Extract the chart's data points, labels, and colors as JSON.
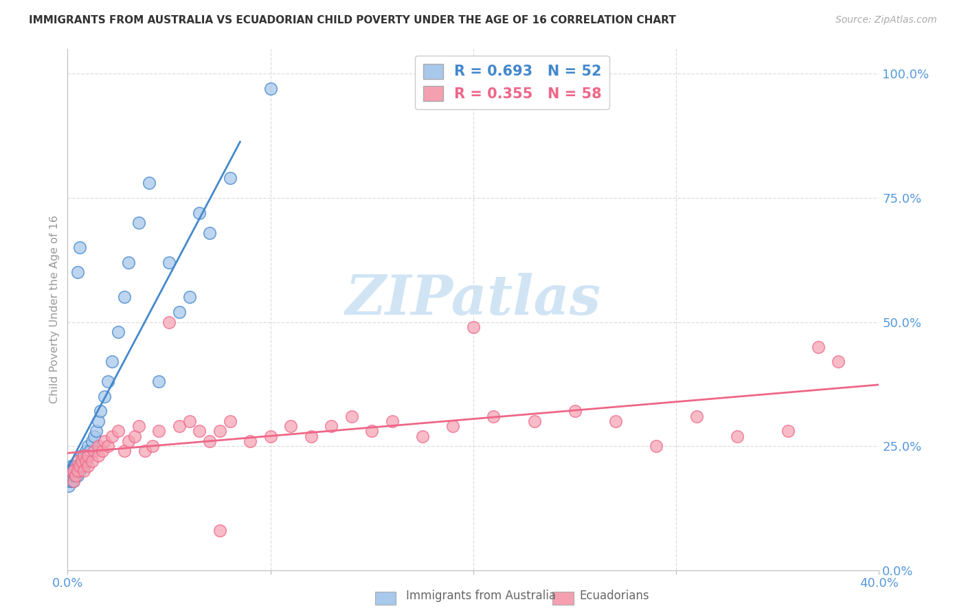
{
  "title": "IMMIGRANTS FROM AUSTRALIA VS ECUADORIAN CHILD POVERTY UNDER THE AGE OF 16 CORRELATION CHART",
  "source": "Source: ZipAtlas.com",
  "ylabel": "Child Poverty Under the Age of 16",
  "legend_label_blue": "Immigrants from Australia",
  "legend_label_pink": "Ecuadorians",
  "R_blue": 0.693,
  "N_blue": 52,
  "R_pink": 0.355,
  "N_pink": 58,
  "color_blue": "#A8C8EC",
  "color_pink": "#F4A0B0",
  "color_line_blue": "#4488CC",
  "color_line_pink": "#EE6688",
  "color_axis_label": "#5599DD",
  "watermark_color": "#D0E4F4",
  "xlim": [
    0.0,
    0.4
  ],
  "ylim": [
    0.0,
    1.05
  ],
  "background_color": "#FFFFFF",
  "grid_color": "#DDDDDD",
  "blue_x": [
    0.0005,
    0.001,
    0.001,
    0.001,
    0.002,
    0.002,
    0.002,
    0.002,
    0.003,
    0.003,
    0.003,
    0.003,
    0.004,
    0.004,
    0.004,
    0.005,
    0.005,
    0.005,
    0.006,
    0.006,
    0.007,
    0.007,
    0.008,
    0.008,
    0.009,
    0.009,
    0.01,
    0.01,
    0.011,
    0.012,
    0.013,
    0.014,
    0.015,
    0.016,
    0.018,
    0.02,
    0.022,
    0.025,
    0.028,
    0.03,
    0.035,
    0.04,
    0.045,
    0.05,
    0.06,
    0.07,
    0.005,
    0.006,
    0.055,
    0.065,
    0.08,
    0.1
  ],
  "blue_y": [
    0.17,
    0.18,
    0.19,
    0.2,
    0.18,
    0.19,
    0.2,
    0.21,
    0.18,
    0.19,
    0.2,
    0.21,
    0.19,
    0.2,
    0.21,
    0.19,
    0.2,
    0.21,
    0.2,
    0.21,
    0.22,
    0.23,
    0.21,
    0.23,
    0.22,
    0.24,
    0.23,
    0.25,
    0.24,
    0.26,
    0.27,
    0.28,
    0.3,
    0.32,
    0.35,
    0.38,
    0.42,
    0.48,
    0.55,
    0.62,
    0.7,
    0.78,
    0.38,
    0.62,
    0.55,
    0.68,
    0.6,
    0.65,
    0.52,
    0.72,
    0.79,
    0.97
  ],
  "pink_x": [
    0.002,
    0.003,
    0.003,
    0.004,
    0.005,
    0.005,
    0.006,
    0.007,
    0.008,
    0.008,
    0.009,
    0.01,
    0.01,
    0.012,
    0.013,
    0.015,
    0.015,
    0.017,
    0.018,
    0.02,
    0.022,
    0.025,
    0.028,
    0.03,
    0.033,
    0.035,
    0.038,
    0.042,
    0.045,
    0.05,
    0.055,
    0.06,
    0.065,
    0.07,
    0.075,
    0.08,
    0.09,
    0.1,
    0.11,
    0.12,
    0.13,
    0.14,
    0.15,
    0.16,
    0.175,
    0.19,
    0.21,
    0.23,
    0.25,
    0.27,
    0.29,
    0.31,
    0.33,
    0.355,
    0.37,
    0.38,
    0.075,
    0.2
  ],
  "pink_y": [
    0.2,
    0.18,
    0.2,
    0.19,
    0.2,
    0.22,
    0.21,
    0.22,
    0.2,
    0.23,
    0.22,
    0.21,
    0.23,
    0.22,
    0.24,
    0.23,
    0.25,
    0.24,
    0.26,
    0.25,
    0.27,
    0.28,
    0.24,
    0.26,
    0.27,
    0.29,
    0.24,
    0.25,
    0.28,
    0.5,
    0.29,
    0.3,
    0.28,
    0.26,
    0.28,
    0.3,
    0.26,
    0.27,
    0.29,
    0.27,
    0.29,
    0.31,
    0.28,
    0.3,
    0.27,
    0.29,
    0.31,
    0.3,
    0.32,
    0.3,
    0.25,
    0.31,
    0.27,
    0.28,
    0.45,
    0.42,
    0.08,
    0.49
  ]
}
